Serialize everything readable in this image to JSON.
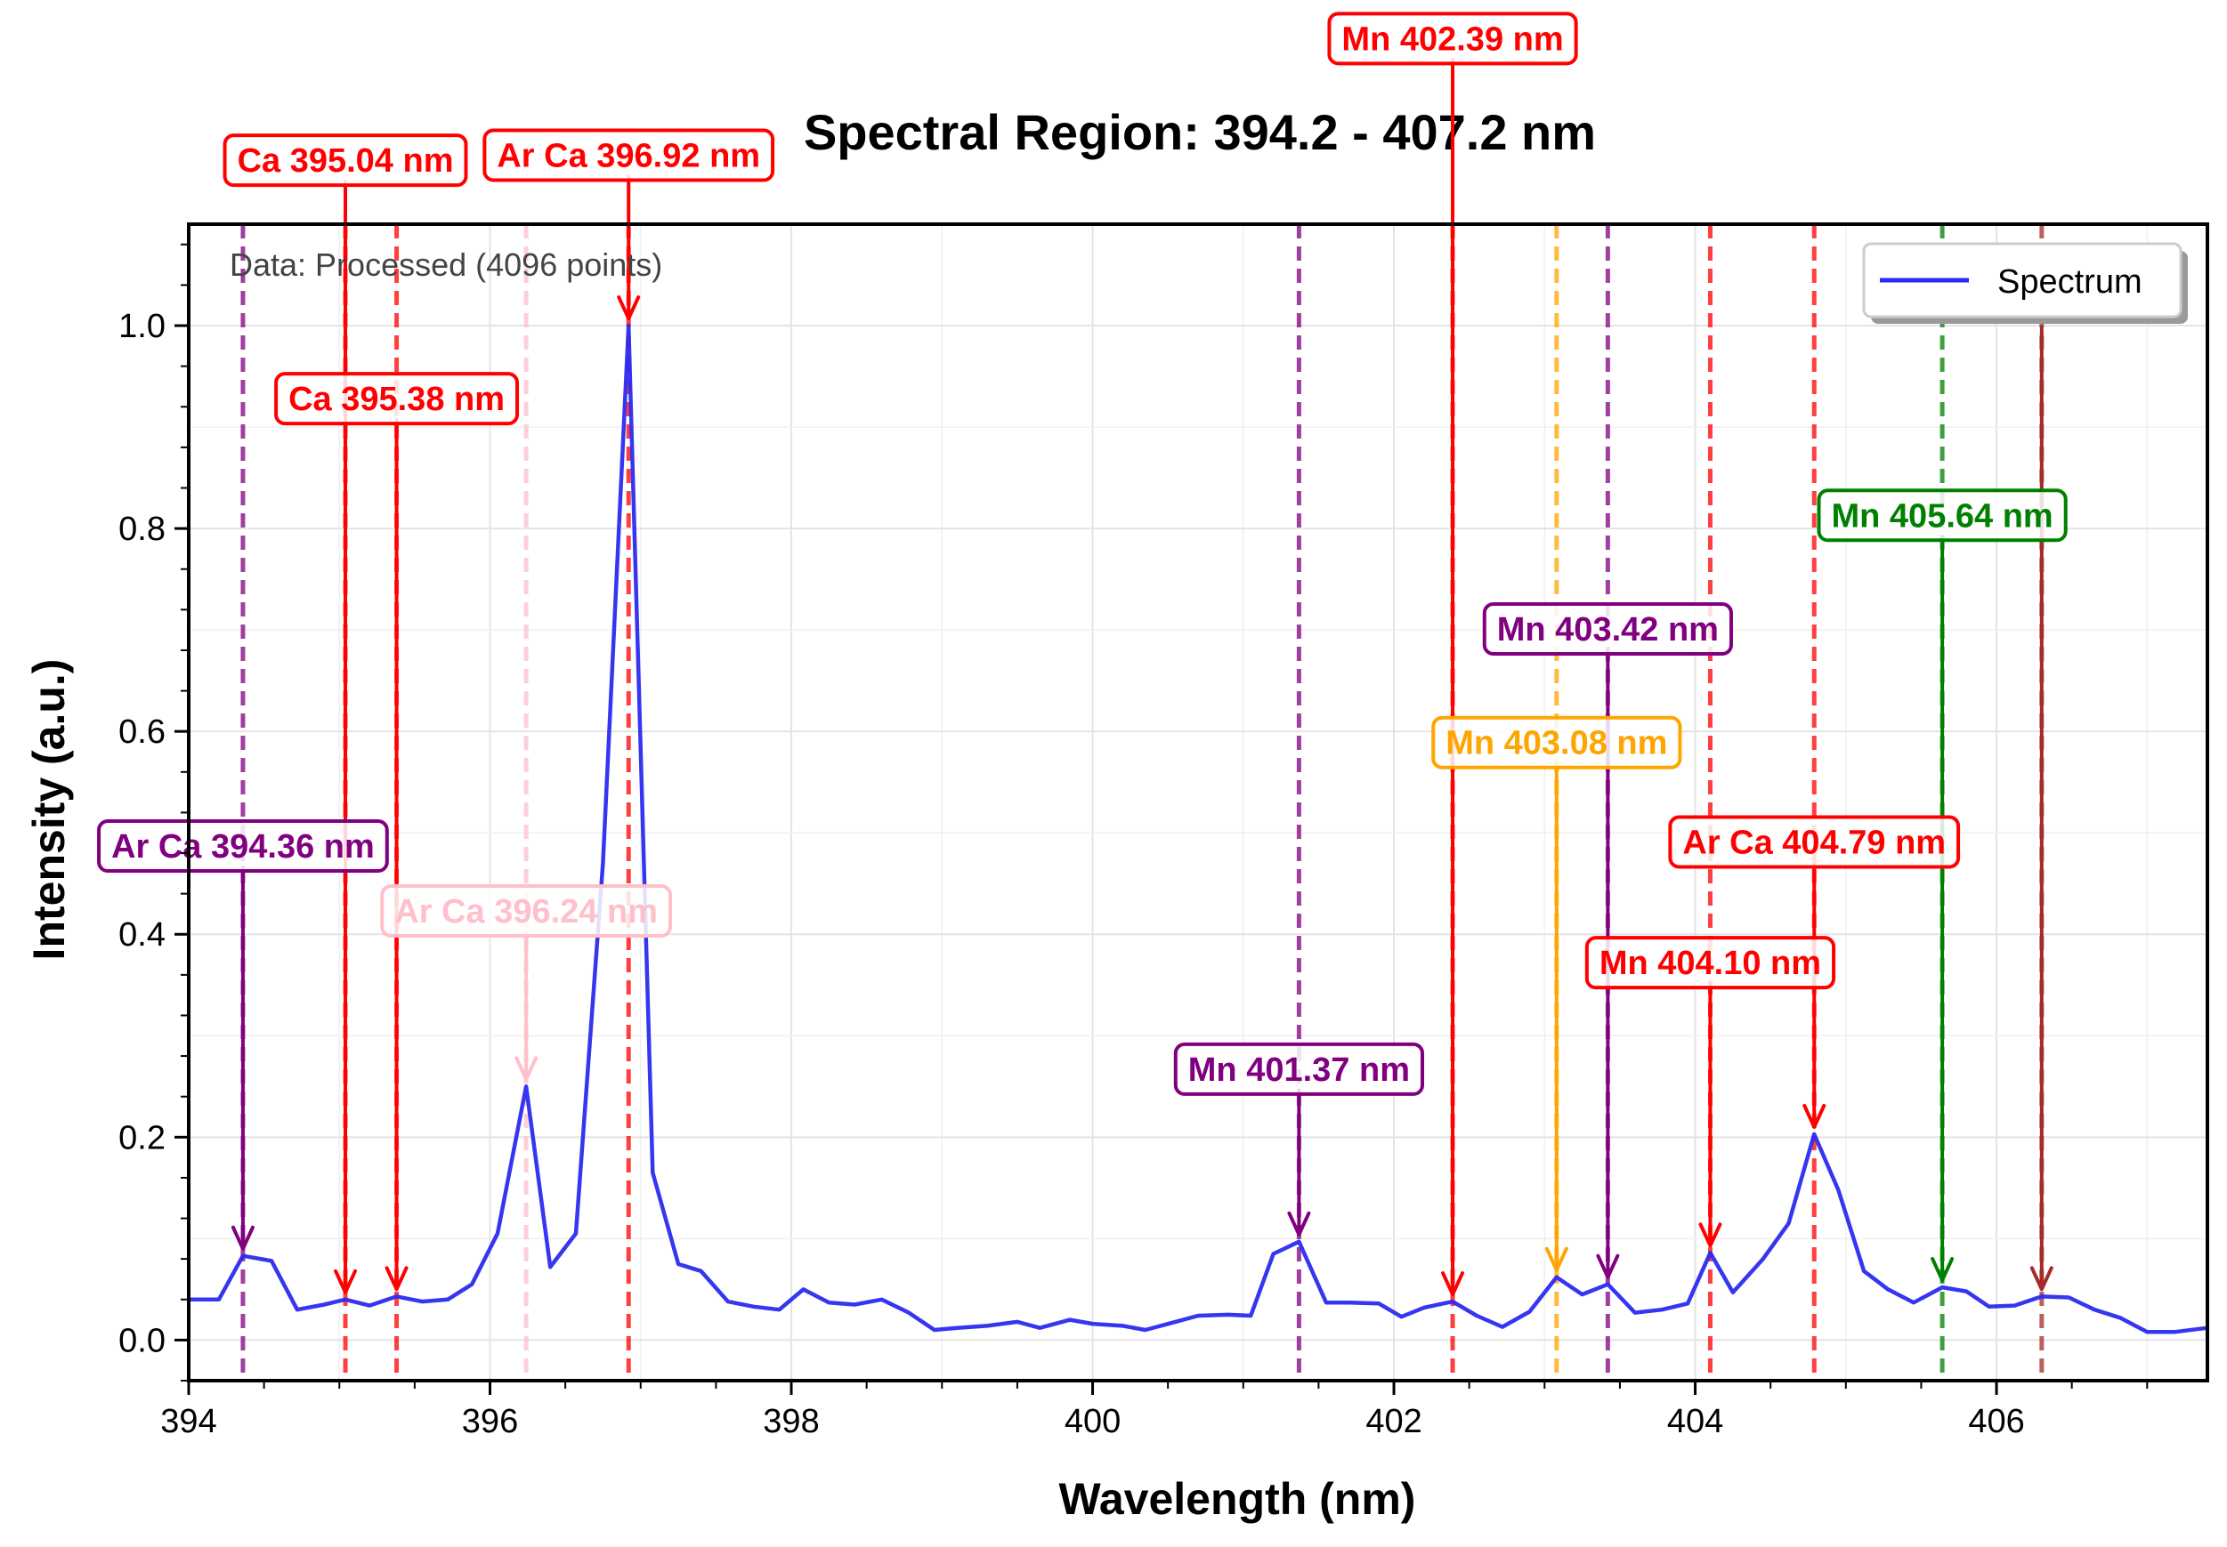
{
  "chart_data": {
    "type": "line",
    "title": "Spectral Region: 394.2 - 407.2 nm",
    "xlabel": "Wavelength (nm)",
    "ylabel": "Intensity (a.u.)",
    "xlim": [
      394.0,
      407.4
    ],
    "ylim": [
      -0.04,
      1.1
    ],
    "xticks": [
      "394",
      "396",
      "398",
      "400",
      "402",
      "404",
      "406"
    ],
    "xtick_values": [
      394,
      396,
      398,
      400,
      402,
      404,
      406
    ],
    "yticks": [
      "0.0",
      "0.2",
      "0.4",
      "0.6",
      "0.8",
      "1.0"
    ],
    "ytick_values": [
      0.0,
      0.2,
      0.4,
      0.6,
      0.8,
      1.0
    ],
    "grid": true,
    "legend": {
      "position": "top-right",
      "entries": [
        "Spectrum"
      ]
    },
    "note": "Data: Processed (4096 points)",
    "series": [
      {
        "name": "Spectrum",
        "color": "#2b2bf0",
        "x": [
          394.0,
          394.2,
          394.36,
          394.55,
          394.72,
          394.9,
          395.04,
          395.2,
          395.38,
          395.55,
          395.72,
          395.88,
          396.05,
          396.24,
          396.4,
          396.57,
          396.75,
          396.92,
          397.08,
          397.25,
          397.4,
          397.58,
          397.75,
          397.92,
          398.08,
          398.25,
          398.42,
          398.6,
          398.78,
          398.95,
          399.1,
          399.3,
          399.5,
          399.65,
          399.85,
          400.0,
          400.2,
          400.35,
          400.55,
          400.7,
          400.9,
          401.05,
          401.2,
          401.37,
          401.55,
          401.7,
          401.9,
          402.05,
          402.2,
          402.39,
          402.55,
          402.72,
          402.9,
          403.08,
          403.25,
          403.42,
          403.6,
          403.78,
          403.95,
          404.1,
          404.25,
          404.45,
          404.62,
          404.79,
          404.95,
          405.12,
          405.28,
          405.45,
          405.64,
          405.8,
          405.95,
          406.12,
          406.3,
          406.48,
          406.65,
          406.82,
          407.0,
          407.18,
          407.4
        ],
        "y": [
          0.04,
          0.04,
          0.083,
          0.078,
          0.03,
          0.035,
          0.04,
          0.034,
          0.043,
          0.038,
          0.04,
          0.055,
          0.105,
          0.25,
          0.072,
          0.105,
          0.47,
          1.0,
          0.165,
          0.075,
          0.068,
          0.038,
          0.033,
          0.03,
          0.05,
          0.037,
          0.035,
          0.04,
          0.027,
          0.01,
          0.012,
          0.014,
          0.018,
          0.012,
          0.02,
          0.016,
          0.014,
          0.01,
          0.018,
          0.024,
          0.025,
          0.024,
          0.085,
          0.097,
          0.037,
          0.037,
          0.036,
          0.023,
          0.032,
          0.038,
          0.024,
          0.013,
          0.028,
          0.062,
          0.045,
          0.055,
          0.027,
          0.03,
          0.036,
          0.086,
          0.047,
          0.08,
          0.115,
          0.203,
          0.148,
          0.068,
          0.05,
          0.037,
          0.052,
          0.048,
          0.033,
          0.034,
          0.043,
          0.042,
          0.03,
          0.022,
          0.008,
          0.008,
          0.012
        ]
      }
    ],
    "annotations": [
      {
        "label": "Ar Ca 394.36 nm",
        "x": 394.36,
        "y": 0.083,
        "label_y": 0.487,
        "color": "#800080"
      },
      {
        "label": "Ca 395.04 nm",
        "x": 395.04,
        "y": 0.04,
        "label_y": 1.163,
        "color": "#ff0000"
      },
      {
        "label": "Ca 395.38 nm",
        "x": 395.38,
        "y": 0.043,
        "label_y": 0.928,
        "color": "#ff0000"
      },
      {
        "label": "Ar Ca 396.24 nm",
        "x": 396.24,
        "y": 0.25,
        "label_y": 0.423,
        "color": "#ffc0cb"
      },
      {
        "label": "Ar Ca 396.92 nm",
        "x": 396.92,
        "y": 1.0,
        "label_y": 1.168,
        "color": "#ff0000"
      },
      {
        "label": "Mn 401.37 nm",
        "x": 401.37,
        "y": 0.097,
        "label_y": 0.267,
        "color": "#800080"
      },
      {
        "label": "Mn 402.39 nm",
        "x": 402.39,
        "y": 0.038,
        "label_y": 1.283,
        "color": "#ff0000"
      },
      {
        "label": "Mn 403.08 nm",
        "x": 403.08,
        "y": 0.062,
        "label_y": 0.589,
        "color": "#ffa500"
      },
      {
        "label": "Mn 403.42 nm",
        "x": 403.42,
        "y": 0.055,
        "label_y": 0.701,
        "color": "#800080"
      },
      {
        "label": "Mn 404.10 nm",
        "x": 404.1,
        "y": 0.086,
        "label_y": 0.372,
        "color": "#ff0000"
      },
      {
        "label": "Ar Ca 404.79 nm",
        "x": 404.79,
        "y": 0.203,
        "label_y": 0.491,
        "color": "#ff0000"
      },
      {
        "label": "Mn 405.64 nm",
        "x": 405.64,
        "y": 0.052,
        "label_y": 0.813,
        "color": "#008000"
      },
      {
        "label": "",
        "x": 406.3,
        "y": 0.043,
        "label_y": null,
        "color": "#a52a2a"
      }
    ]
  }
}
